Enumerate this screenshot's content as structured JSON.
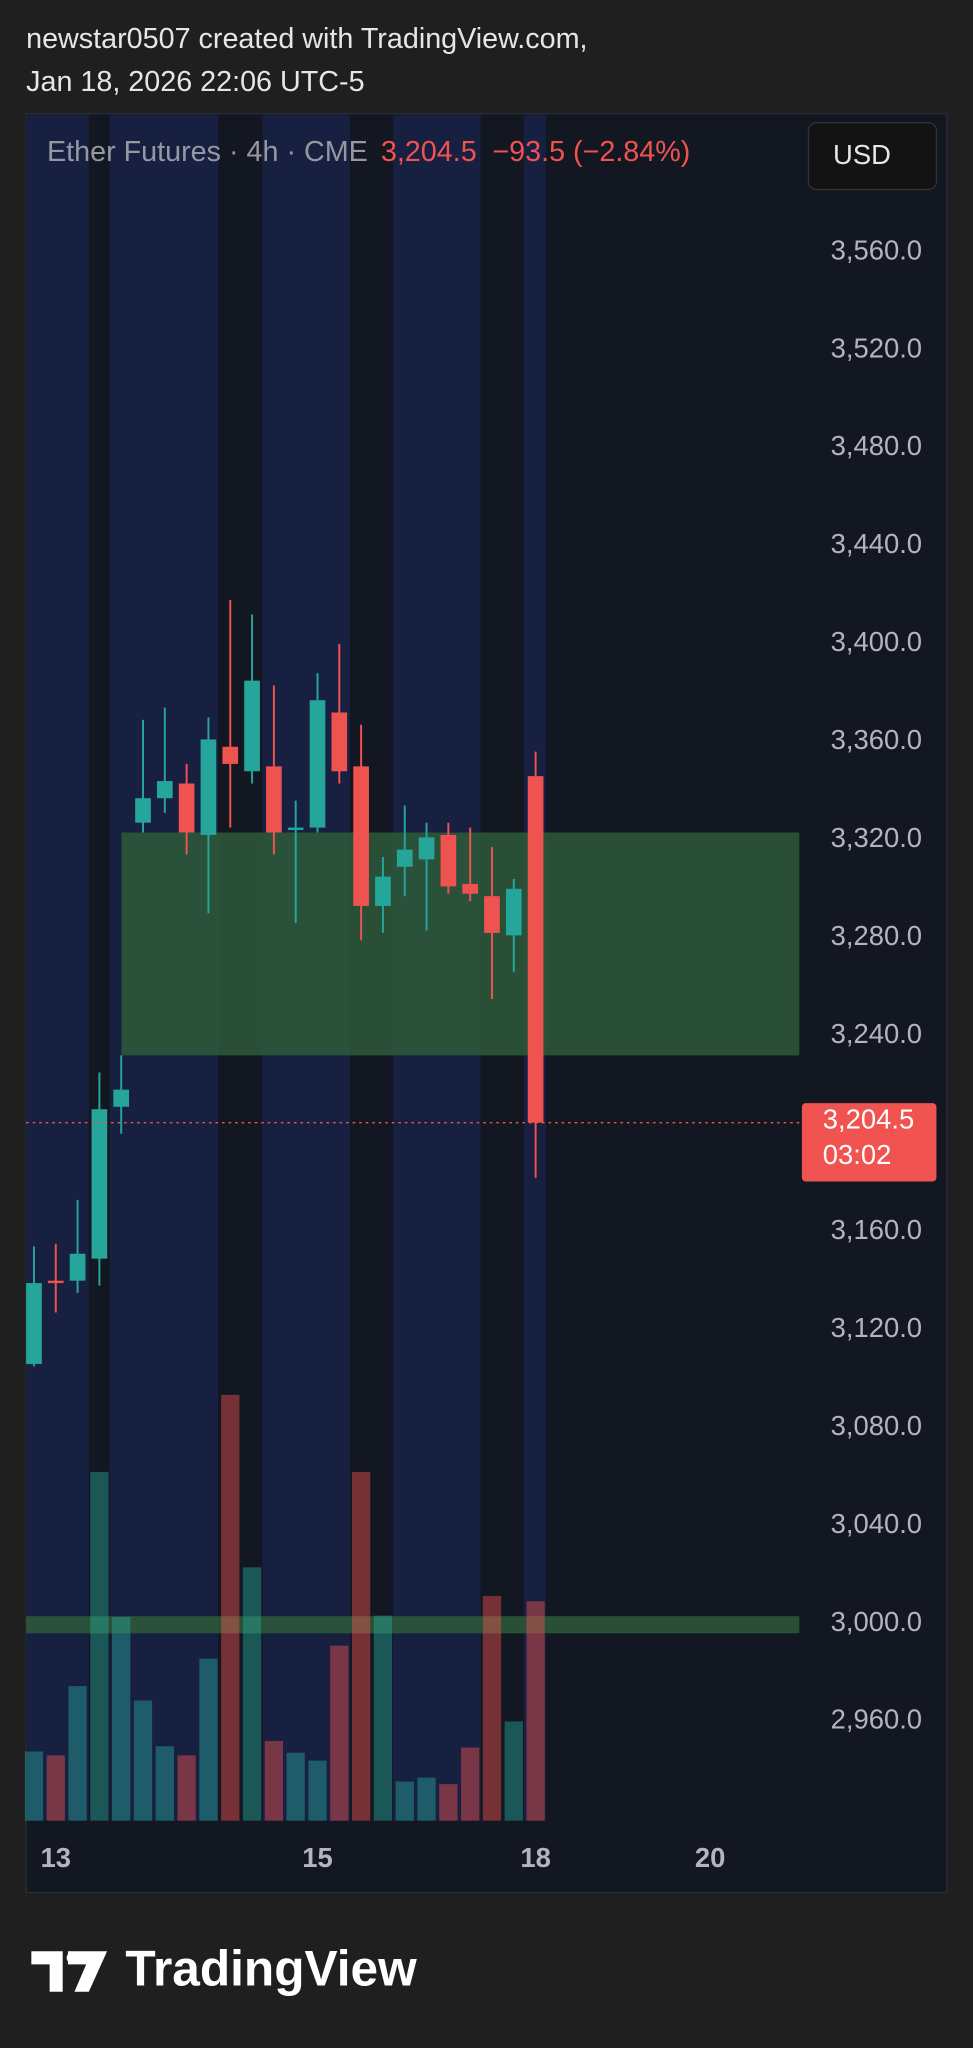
{
  "attribution": {
    "line1": "newstar0507 created with TradingView.com,",
    "line2": "Jan 18, 2026 22:06 UTC-5"
  },
  "brand": "TradingView",
  "chart_data": {
    "type": "candlestick",
    "symbol": "Ether Futures · 4h · CME",
    "price_text": "3,204.5",
    "change_text": "−93.5 (−2.84%)",
    "currency": "USD",
    "categories": [
      null,
      "13",
      null,
      null,
      null,
      null,
      null,
      null,
      null,
      null,
      null,
      null,
      null,
      "15",
      null,
      null,
      null,
      null,
      null,
      null,
      null,
      null,
      null,
      "18",
      null,
      null,
      null,
      null,
      null,
      null,
      null,
      "20"
    ],
    "open": [
      3106,
      3140,
      3140,
      3149,
      3211,
      3327,
      3337,
      3343,
      3322,
      3358,
      3348,
      3350,
      3324,
      3325,
      3372,
      3350,
      3293,
      3309,
      3312,
      3322,
      3302,
      3297,
      3281,
      3346,
      null,
      null,
      null,
      null,
      null,
      null,
      null,
      null
    ],
    "high": [
      3154,
      3155,
      3173,
      3225,
      3232,
      3369,
      3374,
      3351,
      3370,
      3418,
      3412,
      3383,
      3336,
      3388,
      3400,
      3367,
      3313,
      3334,
      3327,
      3327,
      3325,
      3317,
      3304,
      3356,
      null,
      null,
      null,
      null,
      null,
      null,
      null,
      null
    ],
    "low": [
      3105,
      3127,
      3135,
      3138,
      3200,
      3323,
      3331,
      3314,
      3290,
      3325,
      3343,
      3314,
      3286,
      3323,
      3343,
      3279,
      3282,
      3297,
      3283,
      3298,
      3295,
      3255,
      3266,
      3182,
      null,
      null,
      null,
      null,
      null,
      null,
      null,
      null
    ],
    "close": [
      3139,
      3139,
      3151,
      3210,
      3218,
      3337,
      3344,
      3323,
      3361,
      3351,
      3385,
      3323,
      3325,
      3377,
      3348,
      3293,
      3305,
      3316,
      3321,
      3301,
      3298,
      3282,
      3300,
      3204.5,
      null,
      null,
      null,
      null,
      null,
      null,
      null,
      null
    ],
    "volume": [
      53,
      50,
      103,
      267,
      156,
      92,
      57,
      50,
      124,
      326,
      194,
      61,
      52,
      46,
      134,
      267,
      157,
      30,
      33,
      28,
      56,
      172,
      76,
      168,
      null,
      null,
      null,
      null,
      null,
      null,
      null,
      null
    ],
    "up_color": "#26a69a",
    "down_color": "#ef5350",
    "zones": [
      {
        "from": 3232,
        "to": 3323,
        "color": "#2e5a3a"
      },
      {
        "from": 2996,
        "to": 3003,
        "color": "#2e5a3a"
      }
    ],
    "last_price": {
      "value": 3204.5,
      "label": "3,204.5"
    },
    "countdown": "03:02",
    "ylim": [
      2919.5,
      3616.5
    ],
    "yticks": [
      {
        "value": 3560,
        "label": "3,560.0"
      },
      {
        "value": 3520,
        "label": "3,520.0"
      },
      {
        "value": 3480,
        "label": "3,480.0"
      },
      {
        "value": 3440,
        "label": "3,440.0"
      },
      {
        "value": 3400,
        "label": "3,400.0"
      },
      {
        "value": 3360,
        "label": "3,360.0"
      },
      {
        "value": 3320,
        "label": "3,320.0"
      },
      {
        "value": 3280,
        "label": "3,280.0"
      },
      {
        "value": 3240,
        "label": "3,240.0"
      },
      {
        "value": 3160,
        "label": "3,160.0"
      },
      {
        "value": 3120,
        "label": "3,120.0"
      },
      {
        "value": 3080,
        "label": "3,080.0"
      },
      {
        "value": 3040,
        "label": "3,040.0"
      },
      {
        "value": 3000,
        "label": "3,000.0"
      },
      {
        "value": 2960,
        "label": "2,960.0"
      }
    ]
  }
}
